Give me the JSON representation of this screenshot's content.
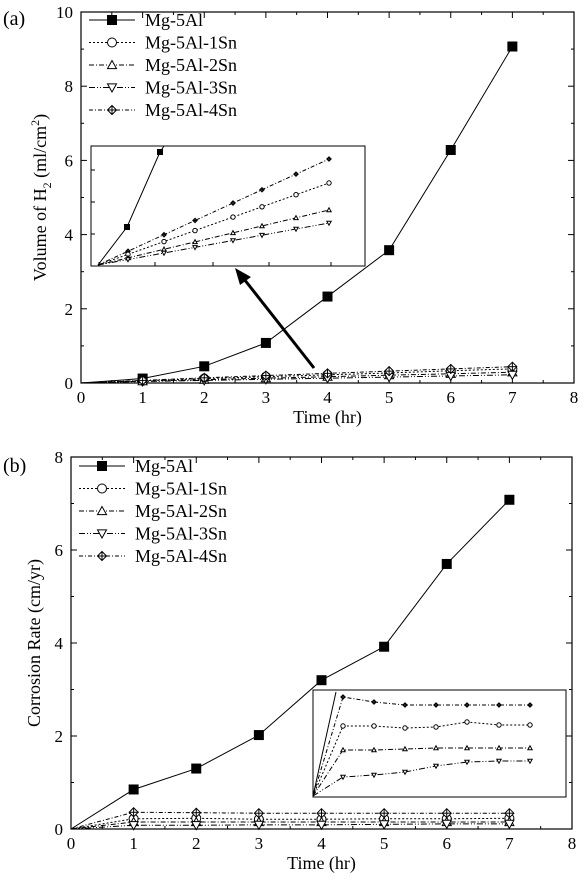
{
  "chart_data": [
    {
      "panel_label": "(a)",
      "type": "line",
      "xlabel": "Time (hr)",
      "ylabel": "Volume of H",
      "ylabel_sub": "2",
      "ylabel_unit_pre": " (ml/cm",
      "ylabel_unit_sup": "2",
      "ylabel_unit_post": ")",
      "xlim": [
        0,
        8
      ],
      "ylim": [
        0,
        10
      ],
      "xticks": [
        0,
        1,
        2,
        3,
        4,
        5,
        6,
        7,
        8
      ],
      "yticks": [
        0,
        2,
        4,
        6,
        8,
        10
      ],
      "x": [
        0,
        1,
        2,
        3,
        4,
        5,
        6,
        7
      ],
      "series": [
        {
          "name": "Mg-5Al",
          "marker": "square-filled",
          "dash": "",
          "values": [
            0,
            0.12,
            0.45,
            1.08,
            2.33,
            3.58,
            6.28,
            9.07
          ]
        },
        {
          "name": "Mg-5Al-1Sn",
          "marker": "circle-open",
          "dash": "2,2",
          "values": [
            0,
            0.06,
            0.12,
            0.17,
            0.22,
            0.27,
            0.33,
            0.38
          ]
        },
        {
          "name": "Mg-5Al-2Sn",
          "marker": "triangle-up-open",
          "dash": "5,2,1,2",
          "values": [
            0,
            0.05,
            0.09,
            0.13,
            0.17,
            0.21,
            0.25,
            0.29
          ]
        },
        {
          "name": "Mg-5Al-3Sn",
          "marker": "triangle-down-open",
          "dash": "6,2,1,2,1,2",
          "values": [
            0,
            0.04,
            0.07,
            0.1,
            0.13,
            0.16,
            0.19,
            0.22
          ]
        },
        {
          "name": "Mg-5Al-4Sn",
          "marker": "diamond-cross",
          "dash": "4,2,1,2",
          "values": [
            0,
            0.07,
            0.14,
            0.2,
            0.26,
            0.32,
            0.38,
            0.44
          ]
        }
      ],
      "legend_position": "top-left",
      "inset": "zoom of low-volume region (axes unlabeled)"
    },
    {
      "panel_label": "(b)",
      "type": "line",
      "xlabel": "Time (hr)",
      "ylabel": "Corrosion Rate (cm/yr)",
      "xlim": [
        0,
        8
      ],
      "ylim": [
        0,
        8
      ],
      "xticks": [
        0,
        1,
        2,
        3,
        4,
        5,
        6,
        7,
        8
      ],
      "yticks": [
        0,
        2,
        4,
        6,
        8
      ],
      "x": [
        0,
        1,
        2,
        3,
        4,
        5,
        6,
        7
      ],
      "series": [
        {
          "name": "Mg-5Al",
          "marker": "square-filled",
          "dash": "",
          "values": [
            0,
            0.85,
            1.3,
            2.02,
            3.2,
            3.92,
            5.7,
            7.08
          ]
        },
        {
          "name": "Mg-5Al-1Sn",
          "marker": "circle-open",
          "dash": "2,2",
          "values": [
            0,
            0.22,
            0.23,
            0.21,
            0.21,
            0.22,
            0.22,
            0.23
          ]
        },
        {
          "name": "Mg-5Al-2Sn",
          "marker": "triangle-up-open",
          "dash": "5,2,1,2",
          "values": [
            0,
            0.15,
            0.15,
            0.15,
            0.15,
            0.15,
            0.15,
            0.15
          ]
        },
        {
          "name": "Mg-5Al-3Sn",
          "marker": "triangle-down-open",
          "dash": "6,2,1,2,1,2",
          "values": [
            0,
            0.08,
            0.08,
            0.09,
            0.09,
            0.1,
            0.11,
            0.11
          ]
        },
        {
          "name": "Mg-5Al-4Sn",
          "marker": "diamond-cross",
          "dash": "4,2,1,2",
          "values": [
            0,
            0.36,
            0.35,
            0.34,
            0.34,
            0.34,
            0.34,
            0.34
          ]
        }
      ],
      "legend_position": "top-left",
      "inset": "zoom of low-rate region (axes unlabeled)"
    }
  ]
}
